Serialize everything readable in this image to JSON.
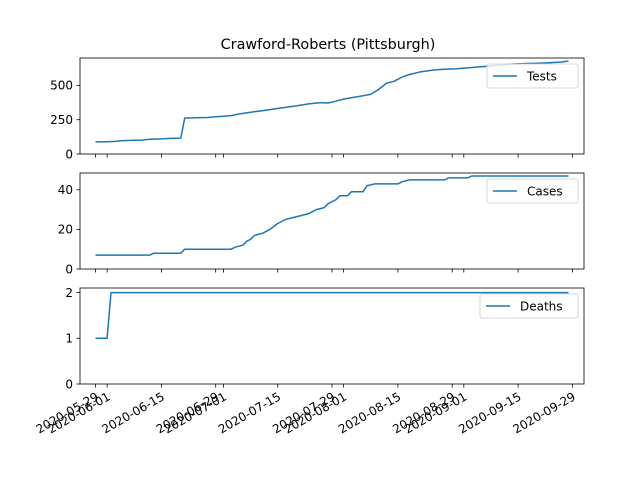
{
  "chart_data": {
    "type": "line",
    "title": "Crawford-Roberts (Pittsburgh)",
    "color": "#1f77b4",
    "x_type": "date",
    "xlim": [
      "2020-05-25",
      "2020-10-02"
    ],
    "x_ticks": [
      "2020-05-29",
      "2020-06-01",
      "2020-06-15",
      "2020-06-29",
      "2020-07-01",
      "2020-07-15",
      "2020-07-29",
      "2020-08-01",
      "2020-08-15",
      "2020-08-29",
      "2020-09-01",
      "2020-09-15",
      "2020-09-29"
    ],
    "subplots": [
      {
        "name": "Tests",
        "legend": "upper right",
        "ylim": [
          0,
          700
        ],
        "y_ticks": [
          0,
          250,
          500
        ],
        "points": [
          [
            "2020-05-29",
            88
          ],
          [
            "2020-06-01",
            90
          ],
          [
            "2020-06-03",
            92
          ],
          [
            "2020-06-05",
            98
          ],
          [
            "2020-06-08",
            100
          ],
          [
            "2020-06-10",
            101
          ],
          [
            "2020-06-12",
            107
          ],
          [
            "2020-06-15",
            110
          ],
          [
            "2020-06-18",
            115
          ],
          [
            "2020-06-20",
            116
          ],
          [
            "2020-06-21",
            262
          ],
          [
            "2020-06-24",
            265
          ],
          [
            "2020-06-27",
            266
          ],
          [
            "2020-06-29",
            272
          ],
          [
            "2020-07-01",
            275
          ],
          [
            "2020-07-03",
            280
          ],
          [
            "2020-07-05",
            292
          ],
          [
            "2020-07-08",
            305
          ],
          [
            "2020-07-11",
            316
          ],
          [
            "2020-07-14",
            328
          ],
          [
            "2020-07-17",
            340
          ],
          [
            "2020-07-20",
            352
          ],
          [
            "2020-07-23",
            365
          ],
          [
            "2020-07-26",
            375
          ],
          [
            "2020-07-28",
            372
          ],
          [
            "2020-07-30",
            385
          ],
          [
            "2020-08-01",
            400
          ],
          [
            "2020-08-03",
            410
          ],
          [
            "2020-08-06",
            425
          ],
          [
            "2020-08-08",
            435
          ],
          [
            "2020-08-10",
            470
          ],
          [
            "2020-08-12",
            515
          ],
          [
            "2020-08-14",
            530
          ],
          [
            "2020-08-16",
            560
          ],
          [
            "2020-08-18",
            580
          ],
          [
            "2020-08-21",
            600
          ],
          [
            "2020-08-24",
            612
          ],
          [
            "2020-08-27",
            618
          ],
          [
            "2020-08-30",
            622
          ],
          [
            "2020-09-02",
            628
          ],
          [
            "2020-09-05",
            635
          ],
          [
            "2020-09-08",
            642
          ],
          [
            "2020-09-11",
            650
          ],
          [
            "2020-09-14",
            656
          ],
          [
            "2020-09-17",
            660
          ],
          [
            "2020-09-20",
            662
          ],
          [
            "2020-09-23",
            666
          ],
          [
            "2020-09-26",
            670
          ],
          [
            "2020-09-28",
            678
          ]
        ]
      },
      {
        "name": "Cases",
        "legend": "upper right",
        "ylim": [
          0,
          48.5
        ],
        "y_ticks": [
          0,
          20,
          40
        ],
        "points": [
          [
            "2020-05-29",
            7
          ],
          [
            "2020-06-12",
            7
          ],
          [
            "2020-06-13",
            8
          ],
          [
            "2020-06-20",
            8
          ],
          [
            "2020-06-21",
            10
          ],
          [
            "2020-07-03",
            10
          ],
          [
            "2020-07-04",
            11
          ],
          [
            "2020-07-06",
            12
          ],
          [
            "2020-07-07",
            14
          ],
          [
            "2020-07-08",
            15
          ],
          [
            "2020-07-09",
            17
          ],
          [
            "2020-07-11",
            18
          ],
          [
            "2020-07-13",
            20
          ],
          [
            "2020-07-15",
            23
          ],
          [
            "2020-07-17",
            25
          ],
          [
            "2020-07-19",
            26
          ],
          [
            "2020-07-21",
            27
          ],
          [
            "2020-07-23",
            28
          ],
          [
            "2020-07-25",
            30
          ],
          [
            "2020-07-27",
            31
          ],
          [
            "2020-07-28",
            33
          ],
          [
            "2020-07-30",
            35
          ],
          [
            "2020-07-31",
            37
          ],
          [
            "2020-08-02",
            37
          ],
          [
            "2020-08-03",
            39
          ],
          [
            "2020-08-06",
            39
          ],
          [
            "2020-08-07",
            42
          ],
          [
            "2020-08-09",
            43
          ],
          [
            "2020-08-15",
            43
          ],
          [
            "2020-08-16",
            44
          ],
          [
            "2020-08-18",
            45
          ],
          [
            "2020-08-27",
            45
          ],
          [
            "2020-08-28",
            46
          ],
          [
            "2020-09-02",
            46
          ],
          [
            "2020-09-03",
            47
          ],
          [
            "2020-09-28",
            47
          ]
        ]
      },
      {
        "name": "Deaths",
        "legend": "upper right",
        "ylim": [
          0,
          2.1
        ],
        "y_ticks": [
          0,
          1,
          2
        ],
        "points": [
          [
            "2020-05-29",
            1
          ],
          [
            "2020-06-01",
            1
          ],
          [
            "2020-06-02",
            2
          ],
          [
            "2020-09-28",
            2
          ]
        ]
      }
    ]
  }
}
